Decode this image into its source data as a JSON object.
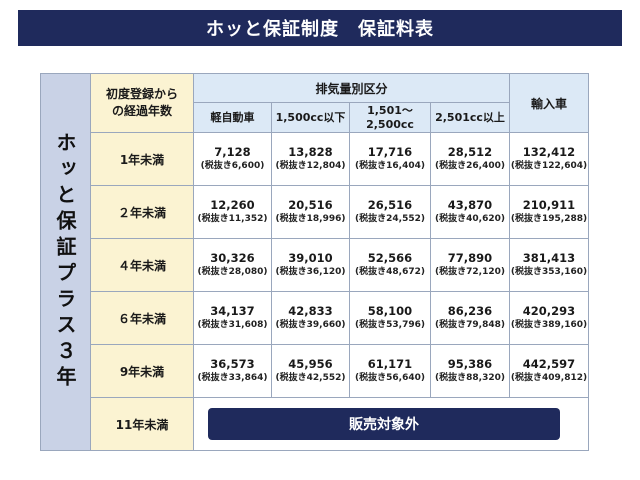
{
  "title": "ホッと保証制度　保証料表",
  "side_label": "ホッと保証プラス３年",
  "header": {
    "years_label_line1": "初度登録から",
    "years_label_line2": "の経過年数",
    "group_label": "排気量別区分",
    "import_label": "輸入車",
    "columns": [
      {
        "line1": "軽自動車",
        "line2": ""
      },
      {
        "line1": "1,500cc以下",
        "line2": ""
      },
      {
        "line1": "1,501～",
        "line2": "2,500cc"
      },
      {
        "line1": "2,501cc以上",
        "line2": ""
      }
    ]
  },
  "rows": [
    {
      "label": "1年未満",
      "cells": [
        {
          "amount": "7,128",
          "tax": "(税抜き6,600)"
        },
        {
          "amount": "13,828",
          "tax": "(税抜き12,804)"
        },
        {
          "amount": "17,716",
          "tax": "(税抜き16,404)"
        },
        {
          "amount": "28,512",
          "tax": "(税抜き26,400)"
        },
        {
          "amount": "132,412",
          "tax": "(税抜き122,604)"
        }
      ]
    },
    {
      "label": "２年未満",
      "cells": [
        {
          "amount": "12,260",
          "tax": "(税抜き11,352)"
        },
        {
          "amount": "20,516",
          "tax": "(税抜き18,996)"
        },
        {
          "amount": "26,516",
          "tax": "(税抜き24,552)"
        },
        {
          "amount": "43,870",
          "tax": "(税抜き40,620)"
        },
        {
          "amount": "210,911",
          "tax": "(税抜き195,288)"
        }
      ]
    },
    {
      "label": "４年未満",
      "cells": [
        {
          "amount": "30,326",
          "tax": "(税抜き28,080)"
        },
        {
          "amount": "39,010",
          "tax": "(税抜き36,120)"
        },
        {
          "amount": "52,566",
          "tax": "(税抜き48,672)"
        },
        {
          "amount": "77,890",
          "tax": "(税抜き72,120)"
        },
        {
          "amount": "381,413",
          "tax": "(税抜き353,160)"
        }
      ]
    },
    {
      "label": "６年未満",
      "cells": [
        {
          "amount": "34,137",
          "tax": "(税抜き31,608)"
        },
        {
          "amount": "42,833",
          "tax": "(税抜き39,660)"
        },
        {
          "amount": "58,100",
          "tax": "(税抜き53,796)"
        },
        {
          "amount": "86,236",
          "tax": "(税抜き79,848)"
        },
        {
          "amount": "420,293",
          "tax": "(税抜き389,160)"
        }
      ]
    },
    {
      "label": "9年未満",
      "cells": [
        {
          "amount": "36,573",
          "tax": "(税抜き33,864)"
        },
        {
          "amount": "45,956",
          "tax": "(税抜き42,552)"
        },
        {
          "amount": "61,171",
          "tax": "(税抜き56,640)"
        },
        {
          "amount": "95,386",
          "tax": "(税抜き88,320)"
        },
        {
          "amount": "442,597",
          "tax": "(税抜き409,812)"
        }
      ]
    }
  ],
  "last_row": {
    "label": "11年未満",
    "not_applicable": "販売対象外"
  },
  "colors": {
    "title_bg": "#1f2a5c",
    "side_bg": "#c9d2e6",
    "years_bg": "#fbf3d2",
    "header_bg": "#dce9f6",
    "border": "#9aa7bd"
  }
}
